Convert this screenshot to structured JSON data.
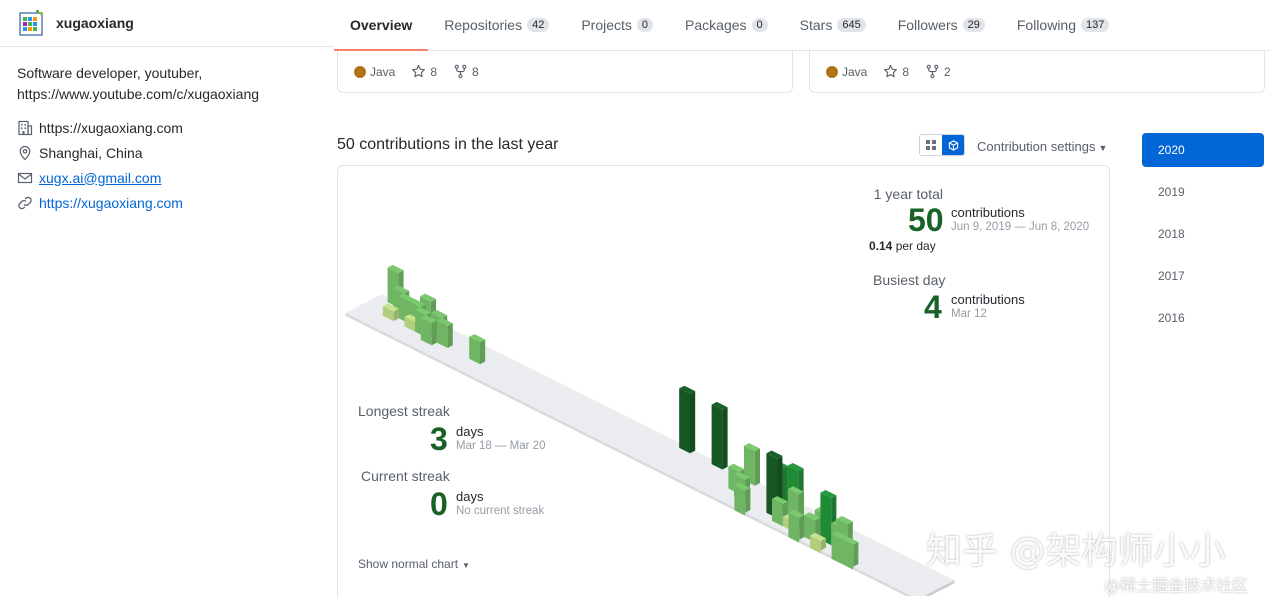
{
  "profile": {
    "username": "xugaoxiang",
    "bio_line1": "Software developer, youtuber,",
    "bio_line2": "https://www.youtube.com/c/xugaoxiang",
    "company": "https://xugaoxiang.com",
    "location": "Shanghai, China",
    "email": "xugx.ai@gmail.com",
    "website": "https://xugaoxiang.com"
  },
  "tabs": [
    {
      "label": "Overview",
      "count": null,
      "active": true
    },
    {
      "label": "Repositories",
      "count": "42"
    },
    {
      "label": "Projects",
      "count": "0"
    },
    {
      "label": "Packages",
      "count": "0"
    },
    {
      "label": "Stars",
      "count": "645"
    },
    {
      "label": "Followers",
      "count": "29"
    },
    {
      "label": "Following",
      "count": "137"
    }
  ],
  "cards": [
    {
      "language": "Java",
      "lang_color": "#b07219",
      "stars": "8",
      "forks": "8"
    },
    {
      "language": "Java",
      "lang_color": "#b07219",
      "stars": "8",
      "forks": "2"
    }
  ],
  "contrib": {
    "heading": "50 contributions in the last year",
    "settings_label": "Contribution settings",
    "show_normal": "Show normal chart",
    "year_total_label": "1 year total",
    "year_total": "50",
    "year_total_unit": "contributions",
    "year_range": "Jun 9, 2019 — Jun 8, 2020",
    "per_day_value": "0.14",
    "per_day_unit": "per day",
    "busiest_label": "Busiest day",
    "busiest_value": "4",
    "busiest_unit": "contributions",
    "busiest_date": "Mar 12",
    "longest_label": "Longest streak",
    "longest_value": "3",
    "longest_unit": "days",
    "longest_range": "Mar 18 — Mar 20",
    "current_label": "Current streak",
    "current_value": "0",
    "current_unit": "days",
    "current_sub": "No current streak"
  },
  "years": [
    "2020",
    "2019",
    "2018",
    "2017",
    "2016"
  ],
  "colors": {
    "accent": "#0366d6",
    "tab_underline": "#f9826c",
    "level1": "#c6e48b",
    "level2": "#7bc96f",
    "level3": "#239a3b",
    "level4": "#196127",
    "empty": "#ebedf0"
  },
  "watermark": {
    "main": "知乎 @架构师小小",
    "sub": "@稀土掘金技术社区"
  }
}
